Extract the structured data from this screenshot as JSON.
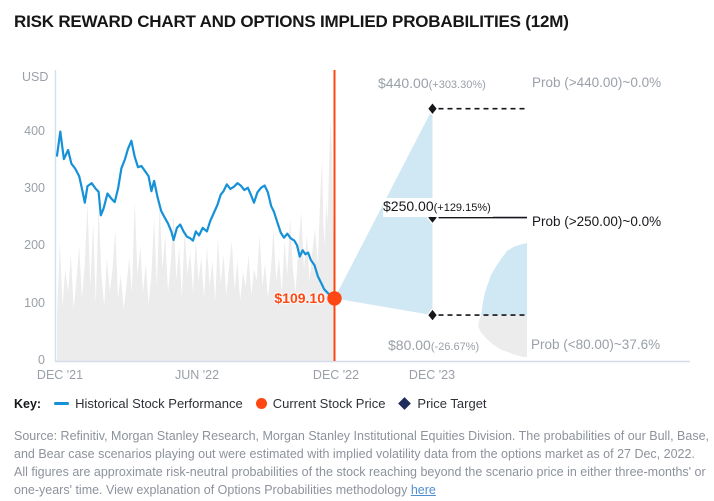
{
  "title": "RISK REWARD CHART AND OPTIONS IMPLIED PROBABILITIES (12M)",
  "chart_data": {
    "type": "line",
    "title": "RISK REWARD CHART AND OPTIONS IMPLIED PROBABILITIES (12M)",
    "y_axis": {
      "label": "USD",
      "ticks": [
        "400",
        "300",
        "200",
        "100",
        "0"
      ],
      "range": [
        0,
        500
      ],
      "grid": false
    },
    "x_axis": {
      "ticks": [
        "DEC '21",
        "JUN '22",
        "DEC '22",
        "DEC '23"
      ]
    },
    "historical": {
      "name": "Historical Stock Performance",
      "color": "#1591d8",
      "points": [
        [
          0,
          358
        ],
        [
          0.012,
          400
        ],
        [
          0.025,
          352
        ],
        [
          0.04,
          368
        ],
        [
          0.052,
          344
        ],
        [
          0.065,
          336
        ],
        [
          0.08,
          322
        ],
        [
          0.09,
          300
        ],
        [
          0.1,
          276
        ],
        [
          0.11,
          305
        ],
        [
          0.125,
          310
        ],
        [
          0.14,
          300
        ],
        [
          0.15,
          295
        ],
        [
          0.158,
          254
        ],
        [
          0.168,
          266
        ],
        [
          0.182,
          292
        ],
        [
          0.196,
          283
        ],
        [
          0.208,
          277
        ],
        [
          0.22,
          300
        ],
        [
          0.232,
          336
        ],
        [
          0.245,
          352
        ],
        [
          0.256,
          370
        ],
        [
          0.268,
          384
        ],
        [
          0.28,
          356
        ],
        [
          0.292,
          338
        ],
        [
          0.304,
          340
        ],
        [
          0.316,
          332
        ],
        [
          0.33,
          322
        ],
        [
          0.34,
          296
        ],
        [
          0.35,
          314
        ],
        [
          0.362,
          286
        ],
        [
          0.375,
          262
        ],
        [
          0.388,
          250
        ],
        [
          0.4,
          240
        ],
        [
          0.412,
          226
        ],
        [
          0.42,
          211
        ],
        [
          0.432,
          232
        ],
        [
          0.444,
          238
        ],
        [
          0.456,
          226
        ],
        [
          0.468,
          217
        ],
        [
          0.48,
          214
        ],
        [
          0.49,
          210
        ],
        [
          0.5,
          226
        ],
        [
          0.512,
          219
        ],
        [
          0.525,
          232
        ],
        [
          0.54,
          226
        ],
        [
          0.552,
          244
        ],
        [
          0.565,
          258
        ],
        [
          0.578,
          272
        ],
        [
          0.59,
          290
        ],
        [
          0.6,
          296
        ],
        [
          0.612,
          308
        ],
        [
          0.625,
          300
        ],
        [
          0.638,
          304
        ],
        [
          0.65,
          310
        ],
        [
          0.662,
          306
        ],
        [
          0.675,
          298
        ],
        [
          0.688,
          302
        ],
        [
          0.7,
          288
        ],
        [
          0.71,
          276
        ],
        [
          0.722,
          294
        ],
        [
          0.735,
          302
        ],
        [
          0.748,
          306
        ],
        [
          0.76,
          294
        ],
        [
          0.772,
          270
        ],
        [
          0.782,
          260
        ],
        [
          0.794,
          242
        ],
        [
          0.806,
          224
        ],
        [
          0.818,
          215
        ],
        [
          0.83,
          222
        ],
        [
          0.842,
          214
        ],
        [
          0.855,
          210
        ],
        [
          0.865,
          202
        ],
        [
          0.875,
          182
        ],
        [
          0.885,
          193
        ],
        [
          0.895,
          186
        ],
        [
          0.905,
          189
        ],
        [
          0.915,
          176
        ],
        [
          0.928,
          167
        ],
        [
          0.94,
          148
        ],
        [
          0.952,
          136
        ],
        [
          0.963,
          125
        ],
        [
          0.975,
          119
        ],
        [
          0.988,
          113
        ],
        [
          1,
          109.1
        ]
      ]
    },
    "volume_silhouette": {
      "color": "#ececec",
      "points": [
        [
          0,
          80
        ],
        [
          0.01,
          210
        ],
        [
          0.02,
          95
        ],
        [
          0.03,
          160
        ],
        [
          0.04,
          120
        ],
        [
          0.05,
          185
        ],
        [
          0.06,
          90
        ],
        [
          0.07,
          140
        ],
        [
          0.08,
          200
        ],
        [
          0.09,
          110
        ],
        [
          0.1,
          170
        ],
        [
          0.11,
          275
        ],
        [
          0.12,
          130
        ],
        [
          0.13,
          240
        ],
        [
          0.14,
          100
        ],
        [
          0.15,
          270
        ],
        [
          0.16,
          150
        ],
        [
          0.17,
          95
        ],
        [
          0.18,
          180
        ],
        [
          0.19,
          120
        ],
        [
          0.2,
          160
        ],
        [
          0.21,
          230
        ],
        [
          0.22,
          110
        ],
        [
          0.23,
          150
        ],
        [
          0.24,
          90
        ],
        [
          0.25,
          130
        ],
        [
          0.26,
          180
        ],
        [
          0.27,
          120
        ],
        [
          0.28,
          280
        ],
        [
          0.29,
          150
        ],
        [
          0.3,
          200
        ],
        [
          0.31,
          120
        ],
        [
          0.32,
          170
        ],
        [
          0.33,
          100
        ],
        [
          0.34,
          150
        ],
        [
          0.35,
          250
        ],
        [
          0.36,
          130
        ],
        [
          0.37,
          280
        ],
        [
          0.38,
          160
        ],
        [
          0.39,
          220
        ],
        [
          0.4,
          120
        ],
        [
          0.41,
          170
        ],
        [
          0.42,
          260
        ],
        [
          0.43,
          140
        ],
        [
          0.44,
          200
        ],
        [
          0.45,
          110
        ],
        [
          0.46,
          230
        ],
        [
          0.47,
          150
        ],
        [
          0.48,
          190
        ],
        [
          0.49,
          120
        ],
        [
          0.5,
          210
        ],
        [
          0.51,
          140
        ],
        [
          0.52,
          180
        ],
        [
          0.53,
          110
        ],
        [
          0.54,
          200
        ],
        [
          0.55,
          130
        ],
        [
          0.56,
          175
        ],
        [
          0.57,
          105
        ],
        [
          0.58,
          215
        ],
        [
          0.59,
          135
        ],
        [
          0.6,
          185
        ],
        [
          0.61,
          115
        ],
        [
          0.62,
          165
        ],
        [
          0.63,
          210
        ],
        [
          0.64,
          125
        ],
        [
          0.65,
          175
        ],
        [
          0.66,
          105
        ],
        [
          0.67,
          155
        ],
        [
          0.68,
          130
        ],
        [
          0.69,
          185
        ],
        [
          0.7,
          115
        ],
        [
          0.71,
          160
        ],
        [
          0.72,
          140
        ],
        [
          0.73,
          220
        ],
        [
          0.74,
          130
        ],
        [
          0.75,
          170
        ],
        [
          0.76,
          110
        ],
        [
          0.77,
          155
        ],
        [
          0.78,
          230
        ],
        [
          0.79,
          140
        ],
        [
          0.8,
          180
        ],
        [
          0.81,
          120
        ],
        [
          0.82,
          210
        ],
        [
          0.83,
          150
        ],
        [
          0.84,
          250
        ],
        [
          0.85,
          160
        ],
        [
          0.86,
          120
        ],
        [
          0.87,
          200
        ],
        [
          0.88,
          260
        ],
        [
          0.89,
          160
        ],
        [
          0.9,
          220
        ],
        [
          0.91,
          140
        ],
        [
          0.92,
          190
        ],
        [
          0.93,
          230
        ],
        [
          0.94,
          170
        ],
        [
          0.95,
          300
        ],
        [
          0.955,
          350
        ],
        [
          0.96,
          240
        ],
        [
          0.965,
          200
        ],
        [
          0.97,
          280
        ],
        [
          0.975,
          240
        ],
        [
          0.98,
          330
        ],
        [
          0.985,
          420
        ],
        [
          0.99,
          380
        ],
        [
          0.995,
          250
        ],
        [
          1,
          150
        ]
      ]
    },
    "current_price": {
      "label": "$109.10",
      "value": 109.1,
      "date": "DEC '22",
      "color": "#ff4713"
    },
    "targets": [
      {
        "price": 440,
        "label": "$440.00",
        "pct": "(+303.30%)",
        "prob": "Prob (>440.00)~0.0%",
        "line_style": "dashed",
        "emphasis": false
      },
      {
        "price": 250,
        "label": "$250.00",
        "pct": "(+129.15%)",
        "prob": "Prob (>250.00)~0.0%",
        "line_style": "solid",
        "emphasis": true
      },
      {
        "price": 80,
        "label": "$80.00",
        "pct": "(-26.67%)",
        "prob": "Prob (<80.00)~37.6%",
        "line_style": "dashed",
        "emphasis": false
      }
    ],
    "fan_color": "#d0e7f4",
    "distribution": {
      "date": "DEC '23",
      "split_value": 80,
      "above_color": "#d0e7f4",
      "below_color": "#ececec",
      "density_samples": [
        [
          7,
          4
        ],
        [
          12,
          14
        ],
        [
          20,
          26
        ],
        [
          30,
          35
        ],
        [
          40,
          41
        ],
        [
          50,
          46
        ],
        [
          60,
          49
        ],
        [
          70,
          48
        ],
        [
          80,
          46
        ],
        [
          90,
          45
        ],
        [
          103,
          44
        ],
        [
          120,
          42
        ],
        [
          135,
          39
        ],
        [
          150,
          36
        ],
        [
          165,
          31
        ],
        [
          180,
          25
        ],
        [
          192,
          20
        ],
        [
          200,
          12
        ],
        [
          206,
          0
        ]
      ]
    },
    "marker_color": "#15171a",
    "legend_diamond_color": "#1f2c5c"
  },
  "legend": {
    "key_label": "Key:",
    "items": [
      {
        "label": "Historical Stock Performance",
        "marker": "line",
        "color": "#1591d8"
      },
      {
        "label": "Current Stock Price",
        "marker": "dot",
        "color": "#ff4713"
      },
      {
        "label": "Price Target",
        "marker": "diamond",
        "color": "#1f2c5c"
      }
    ]
  },
  "source": {
    "text": "Source: Refinitiv, Morgan Stanley Research, Morgan Stanley Institutional Equities Division. The probabilities of our Bull, Base, and Bear case scenarios playing out were estimated with implied volatility data from the options market as of 27 Dec, 2022. All figures are approximate risk-neutral probabilities of the stock reaching beyond the scenario price in either three-months' or one-years' time. View explanation of Options Probabilities methodology ",
    "link_label": "here"
  }
}
